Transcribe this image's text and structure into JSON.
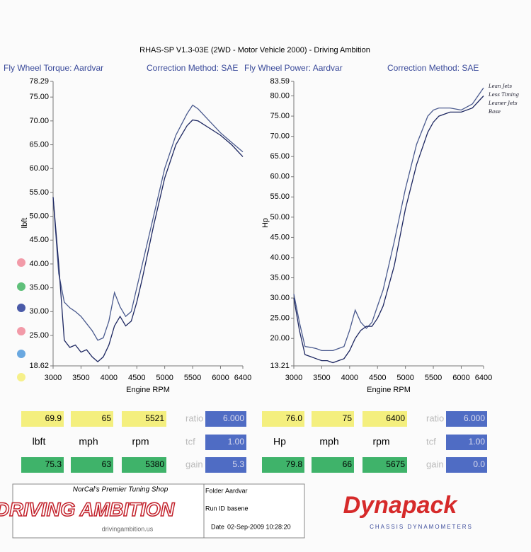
{
  "header": {
    "title": "RHAS-SP V1.3-03E  (2WD - Motor Vehicle 2000) - Driving Ambition"
  },
  "chart_data": [
    {
      "type": "line",
      "title": "Fly Wheel Torque: Aardvar",
      "subtitle": "Correction Method: SAE",
      "x_label": "Engine RPM",
      "y_label": "lbft",
      "x": [
        3000,
        3100,
        3200,
        3300,
        3400,
        3500,
        3600,
        3700,
        3800,
        3900,
        4000,
        4100,
        4200,
        4300,
        4400,
        4500,
        4600,
        4800,
        5000,
        5200,
        5400,
        5500,
        5600,
        5800,
        6000,
        6200,
        6400
      ],
      "series": [
        {
          "color": "#4a5a8e",
          "values": [
            54,
            38,
            32,
            30.8,
            30,
            29,
            27.5,
            26,
            24,
            24.5,
            28,
            34,
            31,
            29,
            30,
            35,
            40,
            50,
            60,
            67,
            71.5,
            73.3,
            72.5,
            70,
            67.5,
            65.5,
            63.5
          ]
        },
        {
          "color": "#1c2660",
          "values": [
            54,
            40,
            24,
            22.5,
            23,
            21.5,
            22,
            20.5,
            19.5,
            20.5,
            23,
            27,
            29,
            27,
            28,
            32,
            37,
            48,
            58,
            65,
            69,
            70.2,
            70,
            68.5,
            67,
            65,
            62.5
          ]
        }
      ],
      "xlim": [
        3000,
        6400
      ],
      "xticks": [
        3000,
        3500,
        4000,
        4500,
        5000,
        5500,
        6000,
        6400
      ],
      "ylim": [
        18.62,
        78.29
      ],
      "yticks": [
        18.62,
        {
          "value": 25,
          "label": "25.00"
        },
        {
          "value": 30,
          "label": "30.00"
        },
        {
          "value": 35,
          "label": "35.00"
        },
        {
          "value": 40,
          "label": "40.00"
        },
        {
          "value": 45,
          "label": "45.00"
        },
        {
          "value": 50,
          "label": "50.00"
        },
        {
          "value": 55,
          "label": "55.00"
        },
        {
          "value": 60,
          "label": "60.00"
        },
        {
          "value": 65,
          "label": "65.00"
        },
        {
          "value": 70,
          "label": "70.00"
        },
        {
          "value": 75,
          "label": "75.00"
        },
        78.29
      ]
    },
    {
      "type": "line",
      "title": "Fly Wheel Power: Aardvar",
      "subtitle": "Correction Method: SAE",
      "x_label": "Engine RPM",
      "y_label": "Hp",
      "x": [
        3000,
        3100,
        3200,
        3300,
        3400,
        3500,
        3600,
        3700,
        3800,
        3900,
        4000,
        4100,
        4200,
        4300,
        4400,
        4500,
        4600,
        4800,
        5000,
        5200,
        5400,
        5500,
        5600,
        5800,
        6000,
        6200,
        6400
      ],
      "series": [
        {
          "color": "#4a5a8e",
          "values": [
            31,
            24,
            18,
            17.8,
            17.5,
            17,
            17,
            17,
            17.5,
            18,
            22,
            27,
            24,
            22.5,
            24,
            28,
            32,
            44,
            57,
            68,
            75,
            76.5,
            77,
            77,
            76.5,
            78,
            82
          ]
        },
        {
          "color": "#1c2660",
          "values": [
            30,
            22,
            16,
            15.5,
            15,
            14.5,
            14.5,
            14,
            14.5,
            15,
            17,
            20,
            22,
            23,
            23,
            25,
            28,
            38,
            52,
            63,
            71,
            73.5,
            75,
            76,
            76,
            77,
            80
          ]
        }
      ],
      "xlim": [
        3000,
        6400
      ],
      "xticks": [
        3000,
        3500,
        4000,
        4500,
        5000,
        5500,
        6000,
        6400
      ],
      "ylim": [
        13.21,
        83.59
      ],
      "yticks": [
        13.21,
        {
          "value": 20,
          "label": "20.00"
        },
        {
          "value": 25,
          "label": "25.00"
        },
        {
          "value": 30,
          "label": "30.00"
        },
        {
          "value": 35,
          "label": "35.00"
        },
        {
          "value": 40,
          "label": "40.00"
        },
        {
          "value": 45,
          "label": "45.00"
        },
        {
          "value": 50,
          "label": "50.00"
        },
        {
          "value": 55,
          "label": "55.00"
        },
        {
          "value": 60,
          "label": "60.00"
        },
        {
          "value": 65,
          "label": "65.00"
        },
        {
          "value": 70,
          "label": "70.00"
        },
        {
          "value": 75,
          "label": "75.00"
        },
        {
          "value": 80,
          "label": "80.00"
        },
        83.59
      ],
      "annotations": [
        "Lean Jets",
        "Less Timing",
        "Leaner Jets",
        "Base"
      ]
    }
  ],
  "readouts": [
    {
      "row1": [
        "69.9",
        "65",
        "5521",
        "ratio",
        "6.000"
      ],
      "row2": [
        "lbft",
        "mph",
        "rpm",
        "tcf",
        "1.00"
      ],
      "row3": [
        "75.3",
        "63",
        "5380",
        "gain",
        "5.3"
      ]
    },
    {
      "row1": [
        "76.0",
        "75",
        "6400",
        "ratio",
        "6.000"
      ],
      "row2": [
        "Hp",
        "mph",
        "rpm",
        "tcf",
        "1.00"
      ],
      "row3": [
        "79.8",
        "66",
        "5675",
        "gain",
        "0.0"
      ]
    }
  ],
  "footer": {
    "tagline": "NorCal's Premier Tuning Shop",
    "logo": "DRIVING AMBITION",
    "website": "drivingambition.us",
    "folder_label": "Folder",
    "folder": "Aardvar",
    "run_id_label": "Run ID",
    "run_id": "basene",
    "date_label": "Date",
    "date": "02-Sep-2009 10:28:20",
    "brand": "Dynapack",
    "brand_sub": "CHASSIS  DYNAMOMETERS"
  }
}
